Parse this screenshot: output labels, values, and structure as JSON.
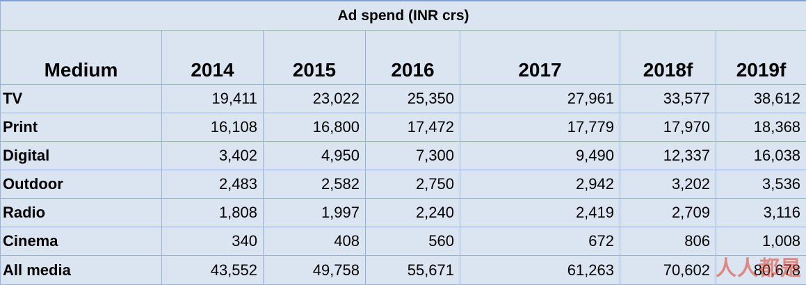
{
  "table": {
    "title": "Ad spend (INR crs)",
    "columns": [
      "Medium",
      "2014",
      "2015",
      "2016",
      "2017",
      "2018f",
      "2019f"
    ],
    "rows": [
      {
        "medium": "TV",
        "values": [
          "19,411",
          "23,022",
          "25,350",
          "27,961",
          "33,577",
          "38,612"
        ]
      },
      {
        "medium": "Print",
        "values": [
          "16,108",
          "16,800",
          "17,472",
          "17,779",
          "17,970",
          "18,368"
        ]
      },
      {
        "medium": "Digital",
        "values": [
          "3,402",
          "4,950",
          "7,300",
          "9,490",
          "12,337",
          "16,038"
        ]
      },
      {
        "medium": "Outdoor",
        "values": [
          "2,483",
          "2,582",
          "2,750",
          "2,942",
          "3,202",
          "3,536"
        ]
      },
      {
        "medium": "Radio",
        "values": [
          "1,808",
          "1,997",
          "2,240",
          "2,419",
          "2,709",
          "3,116"
        ]
      },
      {
        "medium": "Cinema",
        "values": [
          "340",
          "408",
          "560",
          "672",
          "806",
          "1,008"
        ]
      },
      {
        "medium": "All media",
        "values": [
          "43,552",
          "49,758",
          "55,671",
          "61,263",
          "70,602",
          "80,678"
        ]
      }
    ]
  },
  "watermark": {
    "text": "人人都是"
  }
}
